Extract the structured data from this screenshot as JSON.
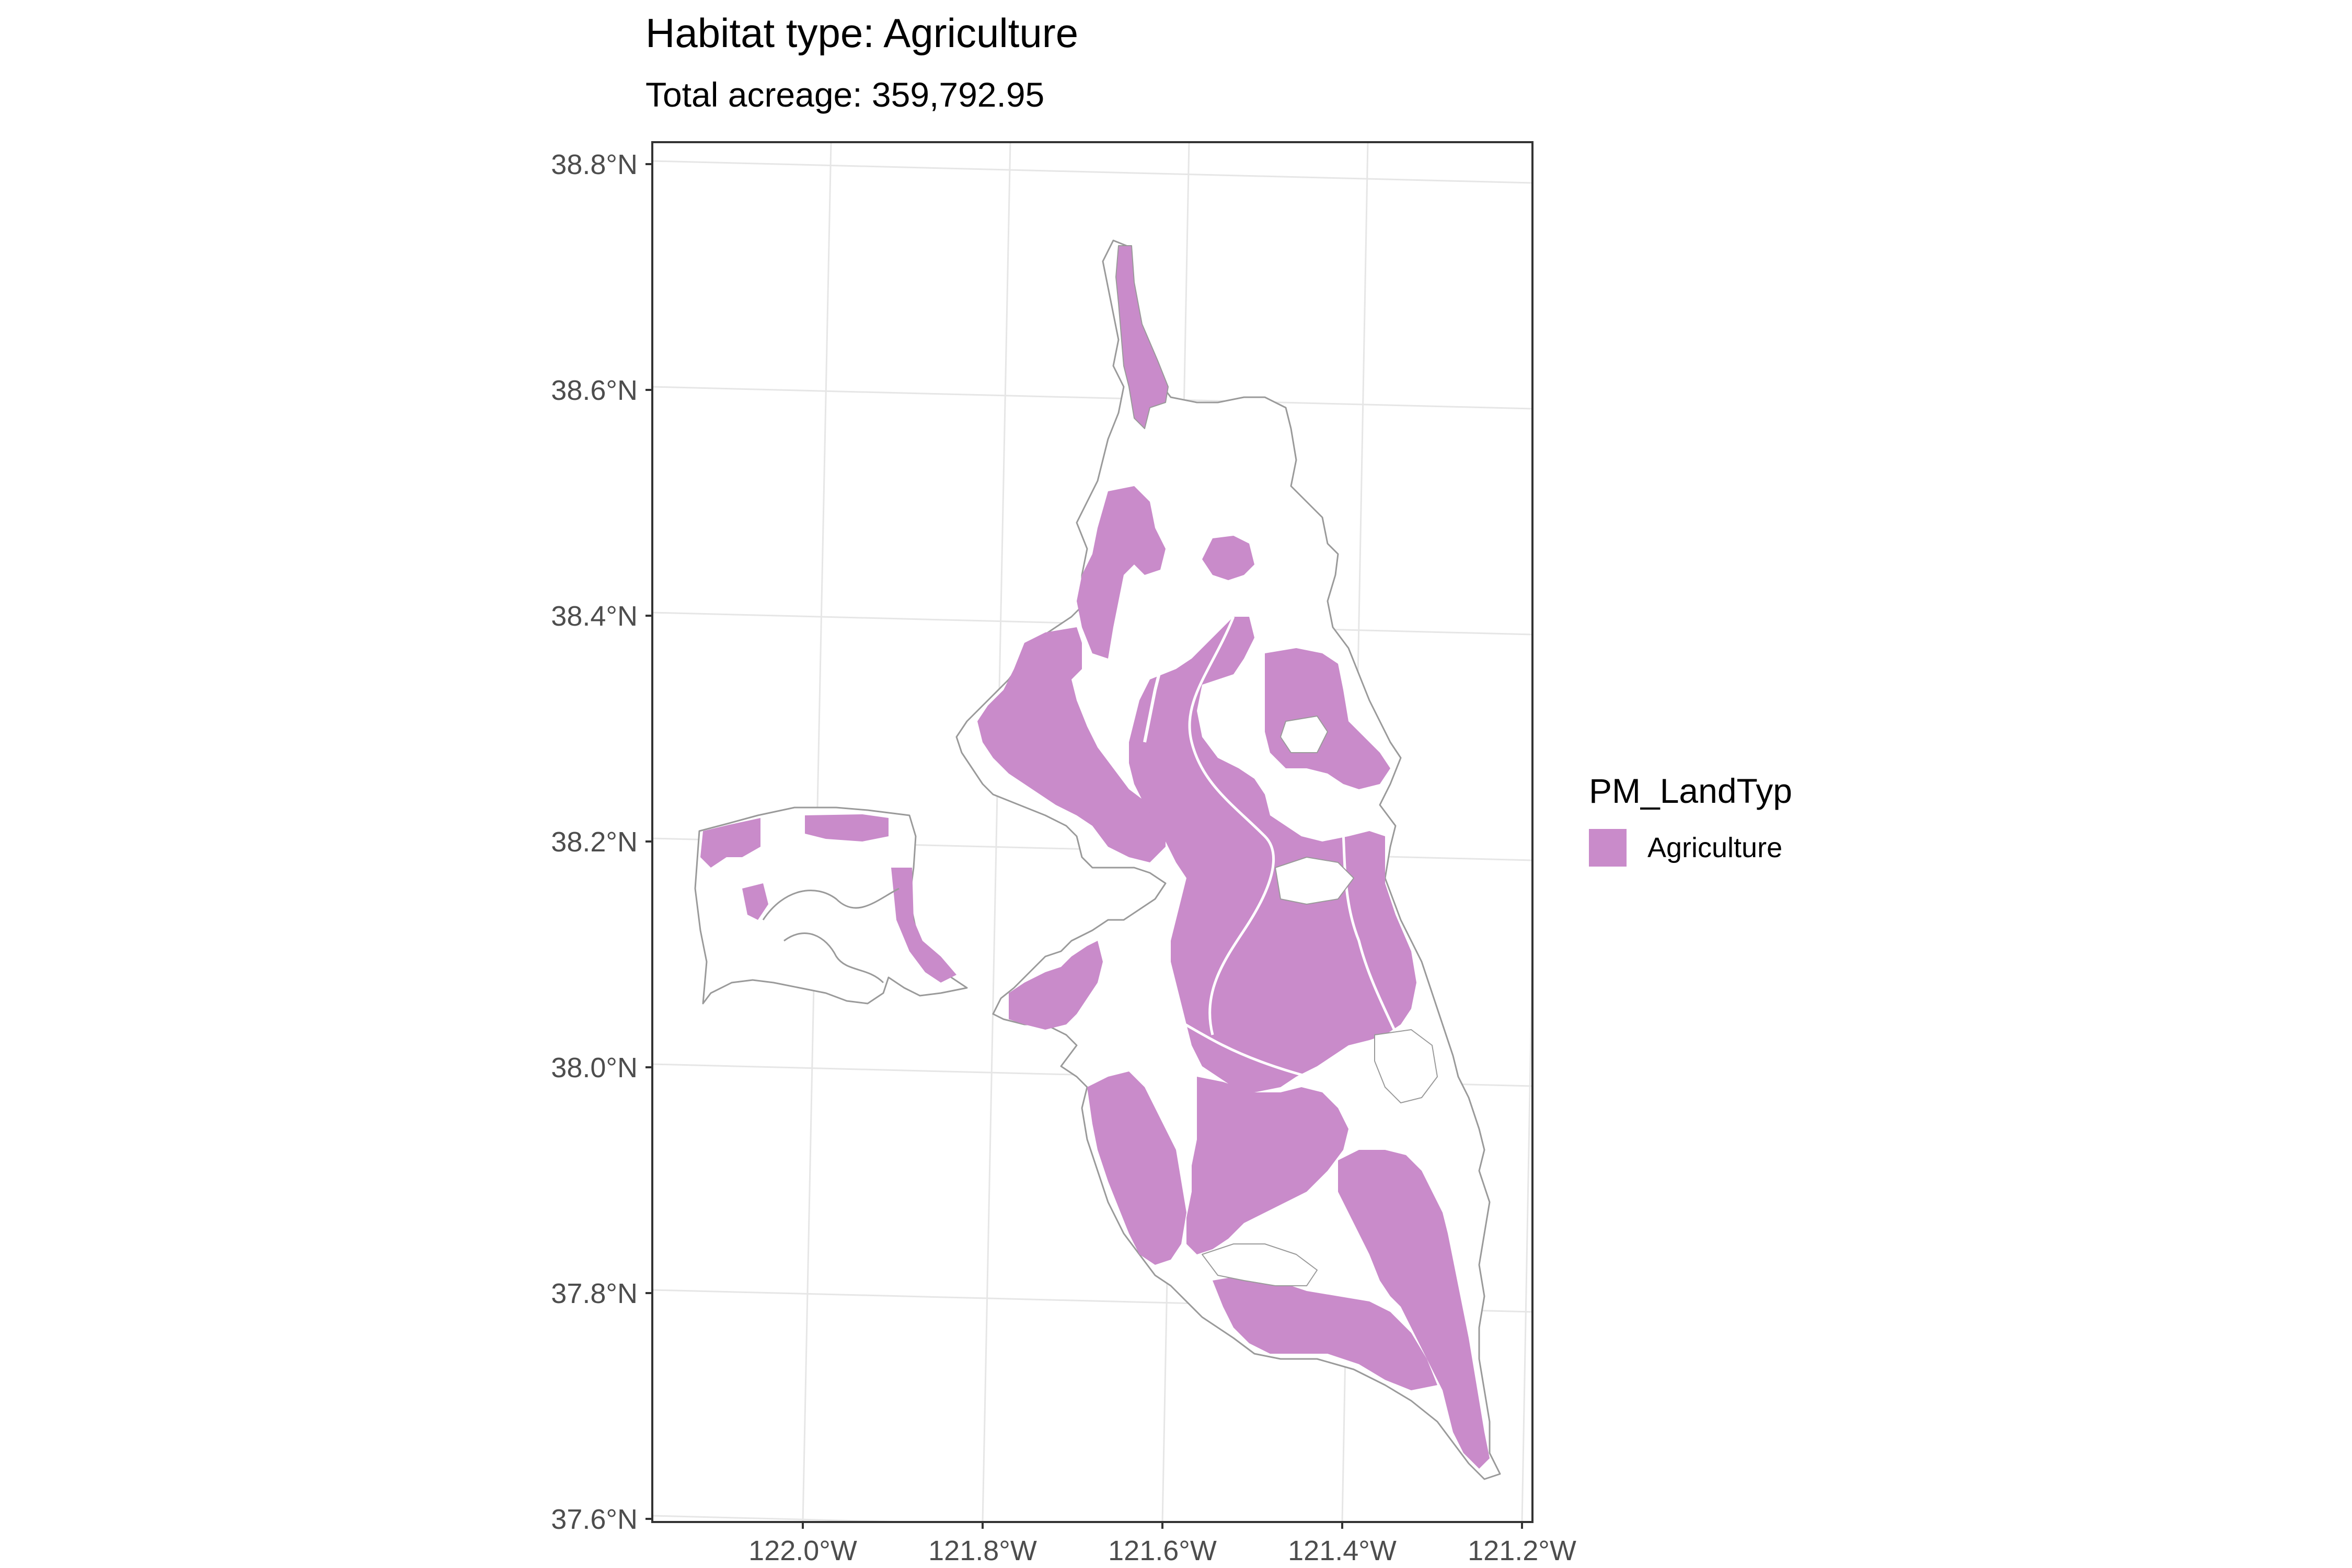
{
  "map": {
    "title": "Habitat type: Agriculture",
    "subtitle": "Total acreage: 359,792.95",
    "fill_color": "#c98bca",
    "outline_color": "#9a9a9a",
    "legend": {
      "title": "PM_LandTyp",
      "items": [
        {
          "label": "Agriculture",
          "color": "#c98bca"
        }
      ]
    },
    "lat_range": [
      37.6,
      38.8
    ],
    "lon_range": [
      -122.1,
      -121.22
    ],
    "y_ticks": [
      "38.8°N",
      "38.6°N",
      "38.4°N",
      "38.2°N",
      "38.0°N",
      "37.8°N",
      "37.6°N"
    ],
    "x_ticks": [
      "122.0°W",
      "121.8°W",
      "121.6°W",
      "121.4°W",
      "121.2°W"
    ],
    "grid": "on",
    "legend_position": "right"
  }
}
